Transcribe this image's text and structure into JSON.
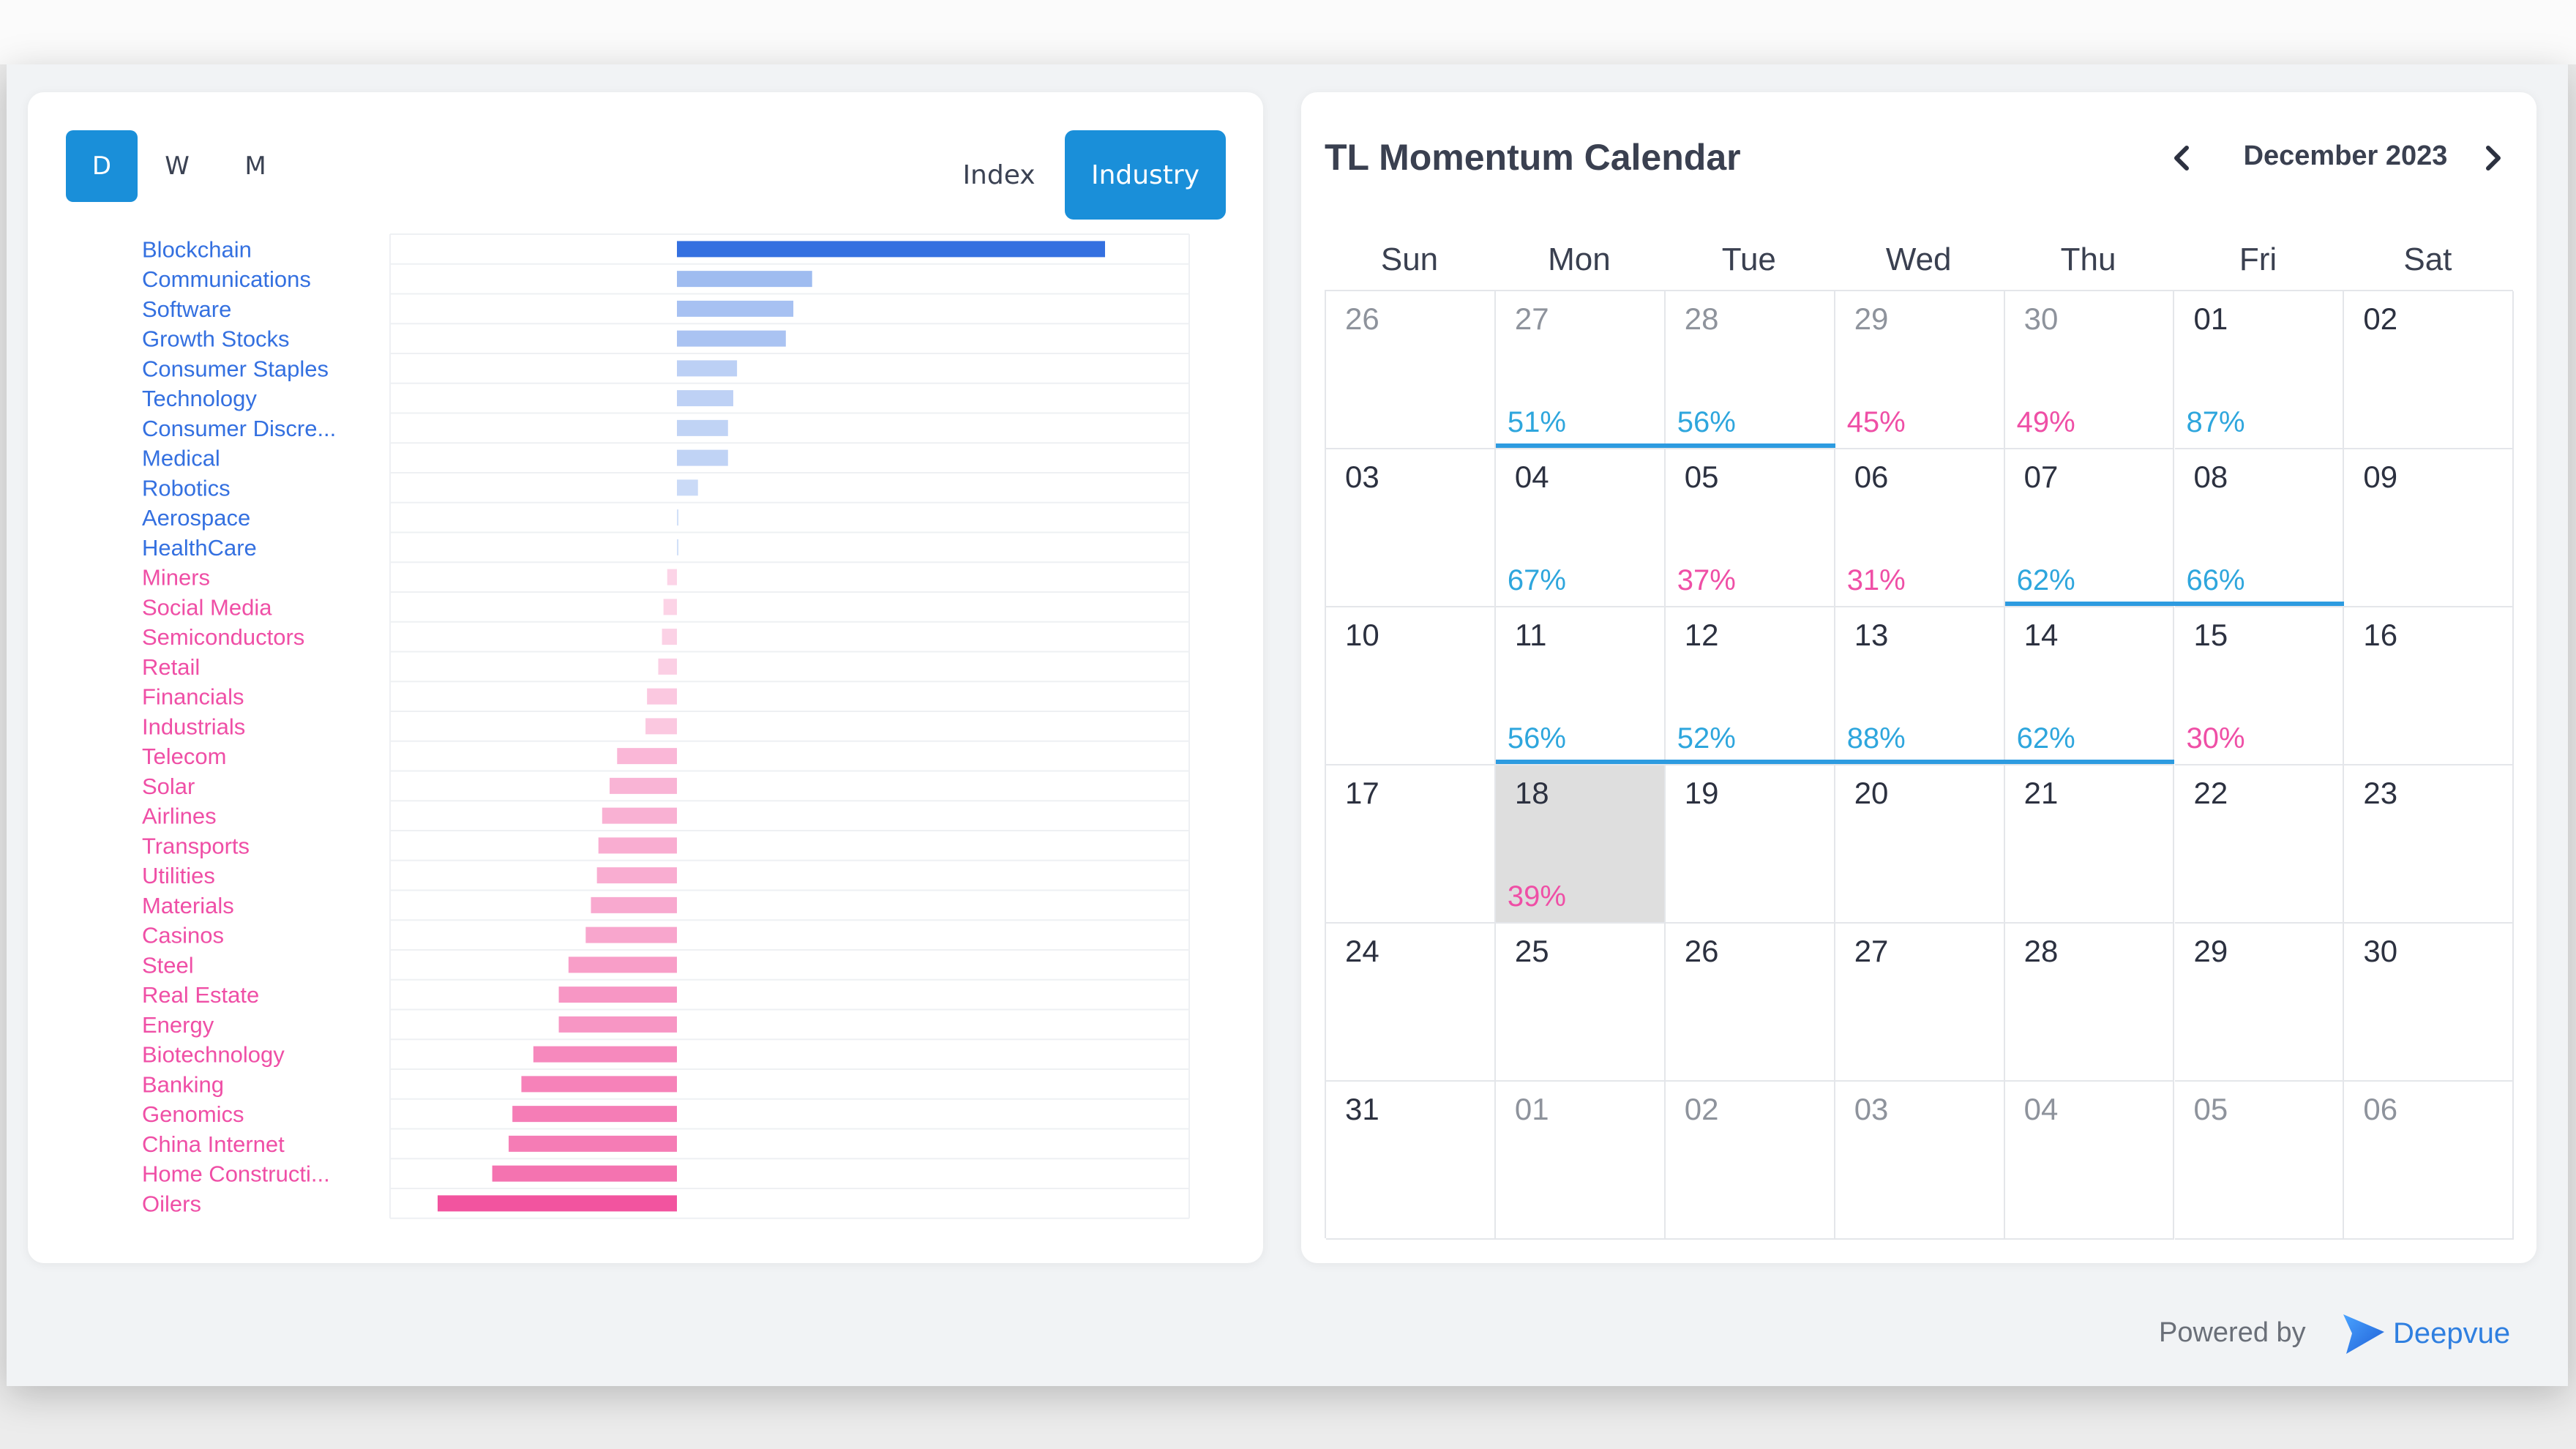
{
  "toggles": {
    "period": [
      "D",
      "W",
      "M"
    ],
    "active_period": "D",
    "views": [
      "Index",
      "Industry"
    ],
    "active_view": "Industry"
  },
  "chart_data": {
    "type": "bar",
    "orientation": "horizontal",
    "categories": [
      "Blockchain",
      "Communications",
      "Software",
      "Growth Stocks",
      "Consumer Staples",
      "Technology",
      "Consumer Discre...",
      "Medical",
      "Robotics",
      "Aerospace",
      "HealthCare",
      "Miners",
      "Social Media",
      "Semiconductors",
      "Retail",
      "Financials",
      "Industrials",
      "Telecom",
      "Solar",
      "Airlines",
      "Transports",
      "Utilities",
      "Materials",
      "Casinos",
      "Steel",
      "Real Estate",
      "Energy",
      "Biotechnology",
      "Banking",
      "Genomics",
      "China Internet",
      "Home Constructi...",
      "Oilers"
    ],
    "values": [
      5.7,
      1.8,
      1.55,
      1.45,
      0.8,
      0.75,
      0.68,
      0.68,
      0.28,
      0.02,
      0.02,
      -0.13,
      -0.18,
      -0.2,
      -0.25,
      -0.4,
      -0.42,
      -0.8,
      -0.9,
      -1.0,
      -1.05,
      -1.07,
      -1.15,
      -1.22,
      -1.45,
      -1.58,
      -1.58,
      -1.92,
      -2.08,
      -2.2,
      -2.25,
      -2.47,
      -3.2
    ],
    "colors": {
      "positive": "#3470e0",
      "negative": "#f2549f",
      "positive_label": "#3470e0",
      "negative_label": "#ef4fa6"
    }
  },
  "calendar": {
    "title": "TL Momentum Calendar",
    "month": "December 2023",
    "weekdays": [
      "Sun",
      "Mon",
      "Tue",
      "Wed",
      "Thu",
      "Fri",
      "Sat"
    ],
    "weeks": [
      [
        {
          "d": "26",
          "muted": true
        },
        {
          "d": "27",
          "muted": true,
          "pct": "51%",
          "dir": "up"
        },
        {
          "d": "28",
          "muted": true,
          "pct": "56%",
          "dir": "up"
        },
        {
          "d": "29",
          "muted": true,
          "pct": "45%",
          "dir": "down"
        },
        {
          "d": "30",
          "muted": true,
          "pct": "49%",
          "dir": "down"
        },
        {
          "d": "01",
          "pct": "87%",
          "dir": "up"
        },
        {
          "d": "02"
        }
      ],
      [
        {
          "d": "03"
        },
        {
          "d": "04",
          "pct": "67%",
          "dir": "up"
        },
        {
          "d": "05",
          "pct": "37%",
          "dir": "down"
        },
        {
          "d": "06",
          "pct": "31%",
          "dir": "down"
        },
        {
          "d": "07",
          "pct": "62%",
          "dir": "up"
        },
        {
          "d": "08",
          "pct": "66%",
          "dir": "up"
        },
        {
          "d": "09"
        }
      ],
      [
        {
          "d": "10"
        },
        {
          "d": "11",
          "pct": "56%",
          "dir": "up"
        },
        {
          "d": "12",
          "pct": "52%",
          "dir": "up"
        },
        {
          "d": "13",
          "pct": "88%",
          "dir": "up"
        },
        {
          "d": "14",
          "pct": "62%",
          "dir": "up"
        },
        {
          "d": "15",
          "pct": "30%",
          "dir": "down"
        },
        {
          "d": "16"
        }
      ],
      [
        {
          "d": "17"
        },
        {
          "d": "18",
          "pct": "39%",
          "dir": "down",
          "today": true
        },
        {
          "d": "19"
        },
        {
          "d": "20"
        },
        {
          "d": "21"
        },
        {
          "d": "22"
        },
        {
          "d": "23"
        }
      ],
      [
        {
          "d": "24"
        },
        {
          "d": "25"
        },
        {
          "d": "26"
        },
        {
          "d": "27"
        },
        {
          "d": "28"
        },
        {
          "d": "29"
        },
        {
          "d": "30"
        }
      ],
      [
        {
          "d": "31"
        },
        {
          "d": "01",
          "muted": true
        },
        {
          "d": "02",
          "muted": true
        },
        {
          "d": "03",
          "muted": true
        },
        {
          "d": "04",
          "muted": true
        },
        {
          "d": "05",
          "muted": true
        },
        {
          "d": "06",
          "muted": true
        }
      ]
    ],
    "streaks": [
      {
        "week": 0,
        "from": 1,
        "to": 2
      },
      {
        "week": 1,
        "from": 4,
        "to": 5
      },
      {
        "week": 2,
        "from": 1,
        "to": 4
      }
    ]
  },
  "footer": {
    "powered_by": "Powered by",
    "brand": "Deepvue"
  }
}
